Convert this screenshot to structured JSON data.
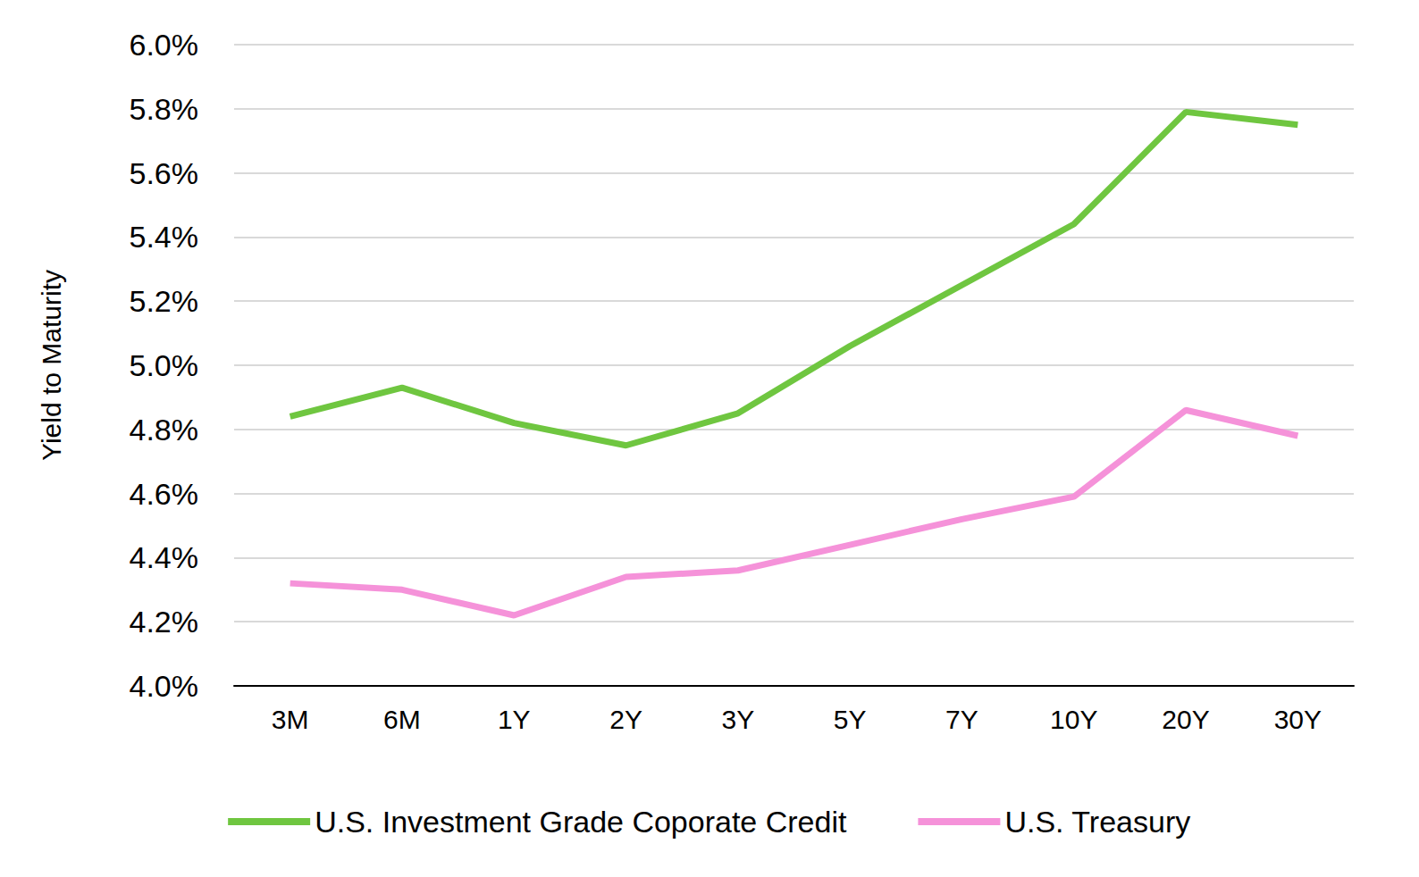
{
  "chart_data": {
    "type": "line",
    "y_label": "Yield to Maturity",
    "categories": [
      "3M",
      "6M",
      "1Y",
      "2Y",
      "3Y",
      "5Y",
      "7Y",
      "10Y",
      "20Y",
      "30Y"
    ],
    "series": [
      {
        "name": "U.S. Investment Grade Coporate Credit",
        "color": "#6fc640",
        "values": [
          4.84,
          4.93,
          4.82,
          4.75,
          4.85,
          5.06,
          5.25,
          5.44,
          5.79,
          5.75
        ]
      },
      {
        "name": "U.S. Treasury",
        "color": "#f592d9",
        "values": [
          4.32,
          4.3,
          4.22,
          4.34,
          4.36,
          4.44,
          4.52,
          4.59,
          4.86,
          4.78
        ]
      }
    ],
    "ylim": [
      4.0,
      6.0
    ],
    "yticks": [
      {
        "value": 4.0,
        "label": "4.0%"
      },
      {
        "value": 4.2,
        "label": "4.2%"
      },
      {
        "value": 4.4,
        "label": "4.4%"
      },
      {
        "value": 4.6,
        "label": "4.6%"
      },
      {
        "value": 4.8,
        "label": "4.8%"
      },
      {
        "value": 5.0,
        "label": "5.0%"
      },
      {
        "value": 5.2,
        "label": "5.2%"
      },
      {
        "value": 5.4,
        "label": "5.4%"
      },
      {
        "value": 5.6,
        "label": "5.6%"
      },
      {
        "value": 5.8,
        "label": "5.8%"
      },
      {
        "value": 6.0,
        "label": "6.0%"
      }
    ],
    "grid": true,
    "legend": "bottom"
  }
}
